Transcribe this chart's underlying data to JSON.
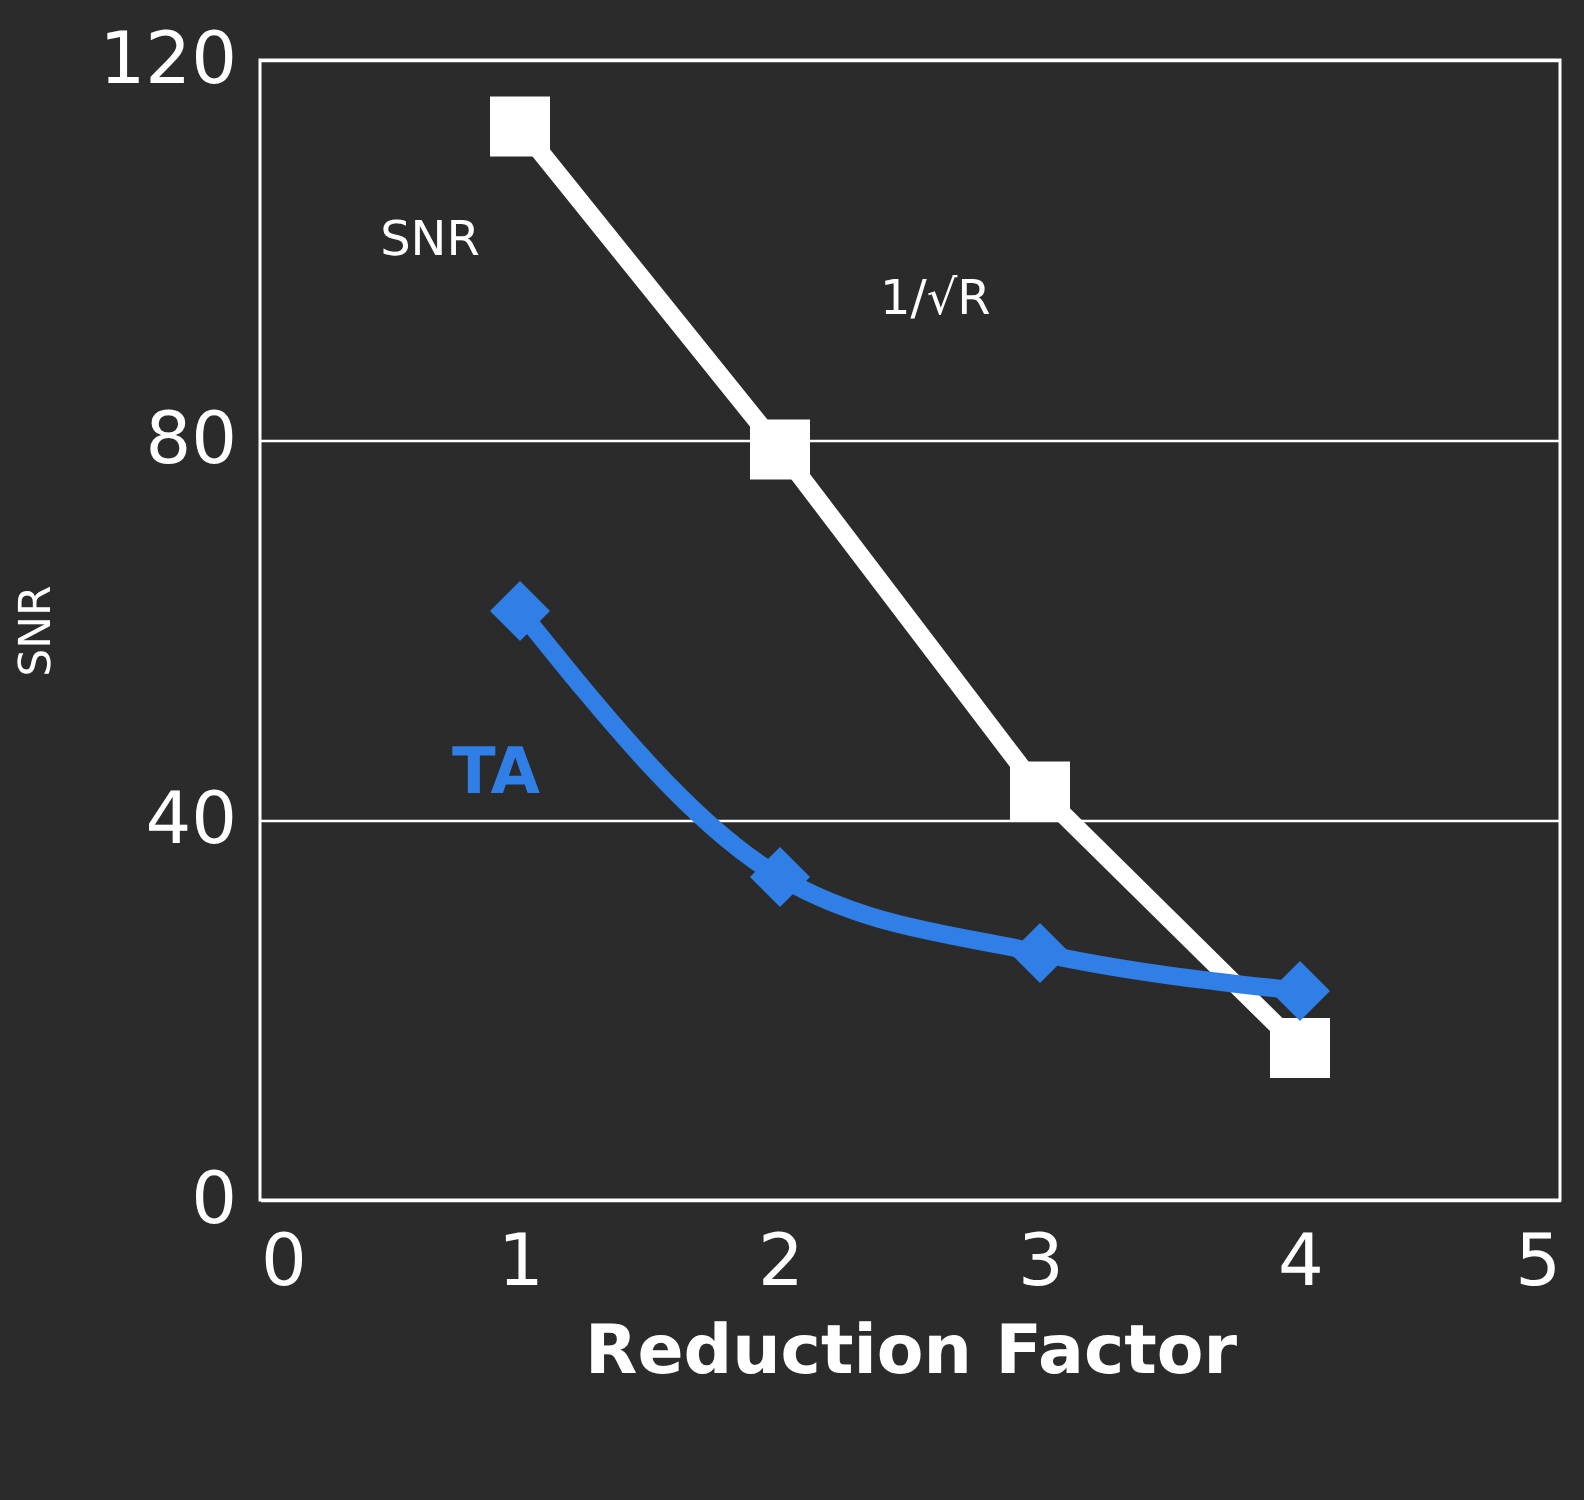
{
  "chart_data": {
    "type": "line",
    "xlabel": "Reduction Factor",
    "ylabel": "SNR",
    "x": [
      1,
      2,
      3,
      4
    ],
    "series": [
      {
        "name": "SNR",
        "color": "#ffffff",
        "values": [
          113,
          79,
          43,
          16
        ],
        "marker": "square"
      },
      {
        "name": "TA",
        "color": "#2f7fe6",
        "values": [
          62,
          34,
          26,
          22
        ],
        "marker": "diamond"
      }
    ],
    "xlim": [
      0,
      5
    ],
    "xticks": [
      0,
      1,
      2,
      3,
      4,
      5
    ],
    "ylim": [
      0,
      120
    ],
    "yticks": [
      0,
      40,
      80,
      120
    ],
    "grid": "y",
    "annotations": [
      "1/√R"
    ]
  }
}
